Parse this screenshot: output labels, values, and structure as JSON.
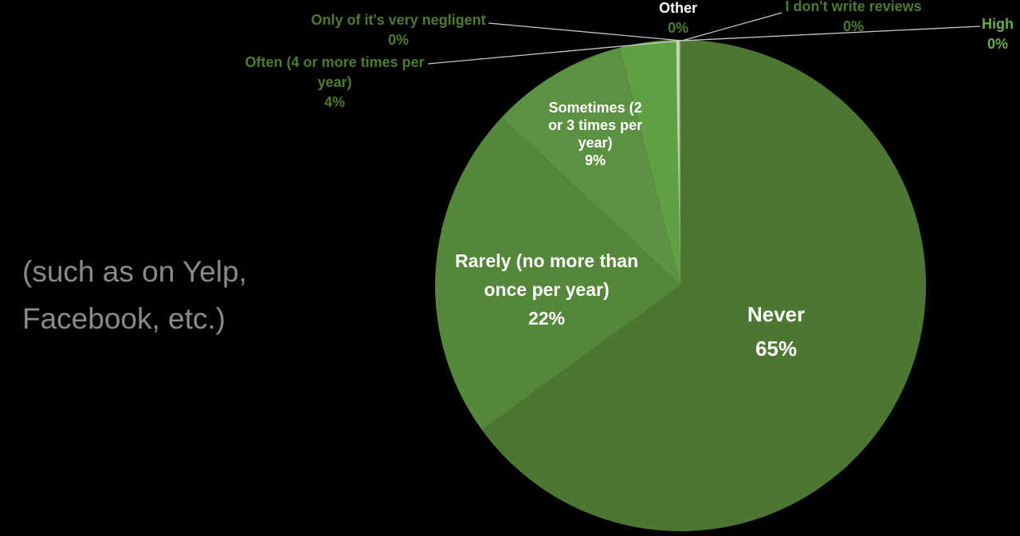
{
  "side_note": {
    "line1": "(such as on Yelp,",
    "line2": "Facebook, etc.)"
  },
  "colors": {
    "background": "#000000",
    "callout_text": "#4E7C2B",
    "high_text": "#6FAA4B",
    "side_note_text": "#8A8A8A",
    "slice_label_text": "#FFFFFF",
    "leader_line": "#C9C9C9",
    "sliver_core": "#D9E9CA"
  },
  "chart_data": {
    "type": "pie",
    "title": "",
    "background": "#000000",
    "direction": "clockwise",
    "start_angle_deg": 0,
    "legend": "none",
    "data_labels": "category name + percentage",
    "slices": [
      {
        "label": "Never",
        "value": 65,
        "color": "#4C7731"
      },
      {
        "label": "Rarely (no more than once per year)",
        "value": 22,
        "color": "#55873A"
      },
      {
        "label": "Sometimes (2 or 3 times per year)",
        "value": 9,
        "color": "#5B9140"
      },
      {
        "label": "Often (4 or more times per year)",
        "value": 4,
        "color": "#60A044"
      },
      {
        "label": "Only of it's very negligent",
        "value": 0,
        "color": "#4E7C2B"
      },
      {
        "label": "Other",
        "value": 0,
        "color": "#D9E9CA"
      },
      {
        "label": "I don't write reviews",
        "value": 0,
        "color": "#4E7C2B"
      },
      {
        "label": "High",
        "value": 0,
        "color": "#6FAA4B"
      }
    ],
    "annotation": "(such as on Yelp, Facebook, etc.)"
  },
  "labels": {
    "never": {
      "name": "Never",
      "pct": "65%"
    },
    "rarely": {
      "l1": "Rarely (no more than",
      "l2": "once per year)",
      "pct": "22%"
    },
    "sometimes": {
      "l1": "Sometimes (2",
      "l2": "or 3 times per",
      "l3": "year)",
      "pct": "9%"
    },
    "often": {
      "l1": "Often (4 or more times per",
      "l2": "year)",
      "pct": "4%"
    },
    "negligent": {
      "l1": "Only of it's very negligent",
      "pct": "0%"
    },
    "other": {
      "l1": "Other",
      "pct": "0%"
    },
    "reviews": {
      "l1": "I don't write reviews",
      "pct": "0%"
    },
    "high": {
      "l1": "High",
      "pct": "0%"
    }
  }
}
